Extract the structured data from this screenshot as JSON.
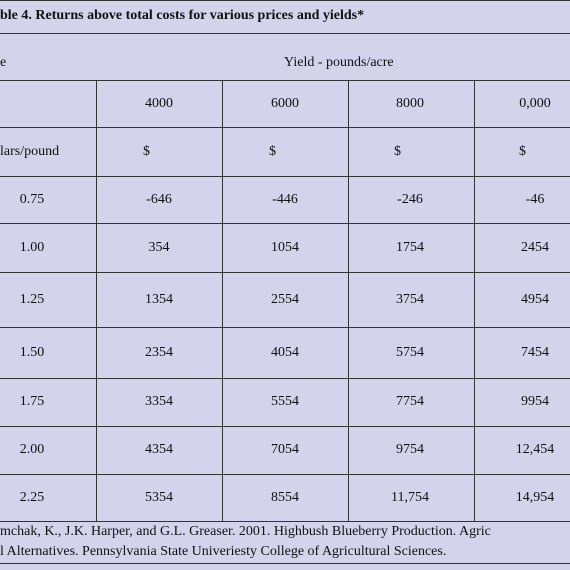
{
  "title": "ble 4.  Returns above total costs for various prices and yields*",
  "table": {
    "header_left": "e",
    "yield_header": "Yield - pounds/acre",
    "yields": [
      "4000",
      "6000",
      "8000",
      "0,000"
    ],
    "units": [
      "lars/pound",
      "$",
      "$",
      "$",
      "$"
    ],
    "rows": [
      [
        "0.75",
        "-646",
        "-446",
        "-246",
        "-46"
      ],
      [
        "1.00",
        "354",
        "1054",
        "1754",
        "2454"
      ],
      [
        "1.25",
        "1354",
        "2554",
        "3754",
        "4954"
      ],
      [
        "1.50",
        "2354",
        "4054",
        "5754",
        "7454"
      ],
      [
        "1.75",
        "3354",
        "5554",
        "7754",
        "9954"
      ],
      [
        "2.00",
        "4354",
        "7054",
        "9754",
        "12,454"
      ],
      [
        "2.25",
        "5354",
        "8554",
        "11,754",
        "14,954"
      ]
    ]
  },
  "footnote": [
    "mchak, K., J.K. Harper, and G.L. Greaser.  2001.  Highbush Blueberry Production.  Agric",
    "l Alternatives.  Pennsylvania State Univeriesty College of Agricultural Sciences."
  ]
}
